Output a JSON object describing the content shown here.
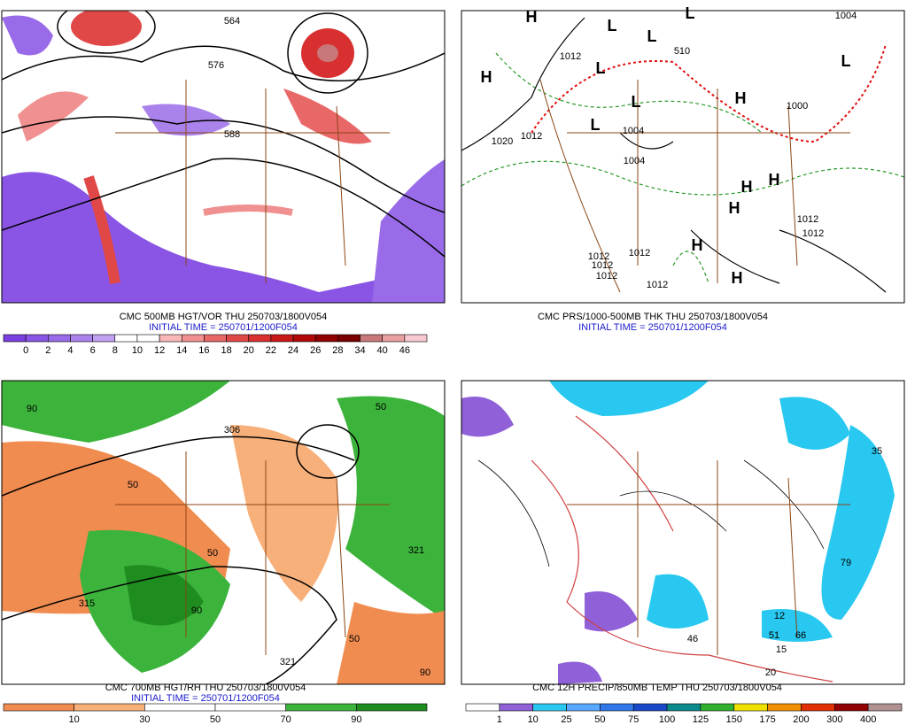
{
  "panels": [
    {
      "caption": "CMC 500MB HGT/VOR THU 250703/1800V054",
      "initial_time": "INITIAL TIME = 250701/1200F054",
      "colorbar": {
        "colors": [
          "#7a3fe0",
          "#8a55e4",
          "#9a6be8",
          "#aa82ec",
          "#c0a0f0",
          "#ffffff",
          "#ffffff",
          "#f8b8b8",
          "#f09090",
          "#e86868",
          "#e04848",
          "#d83030",
          "#c81818",
          "#b00808",
          "#900000",
          "#780000",
          "#c87878",
          "#e8a0a0",
          "#f8c8d0"
        ],
        "labels": [
          0,
          2,
          4,
          6,
          8,
          10,
          12,
          14,
          16,
          18,
          20,
          22,
          24,
          26,
          28,
          34,
          40,
          46
        ]
      },
      "map_labels": [
        "564",
        "576",
        "588"
      ]
    },
    {
      "caption": "CMC PRS/1000-500MB THK THU 250703/1800V054",
      "initial_time": "INITIAL TIME = 250701/1200F054",
      "map_labels": [
        "H",
        "H",
        "H",
        "H",
        "H",
        "H",
        "H",
        "H",
        "L",
        "L",
        "L",
        "L",
        "L",
        "L",
        "L",
        "1012",
        "1012",
        "1004",
        "1004",
        "1020",
        "1000",
        "1012",
        "1012",
        "1012",
        "1012",
        "1012",
        "1012",
        "1012",
        "1004",
        "510"
      ]
    },
    {
      "caption": "CMC 700MB HGT/RH THU 250703/1800V054",
      "initial_time": "INITIAL TIME = 250701/1200F054",
      "colorbar": {
        "colors": [
          "#f08c50",
          "#f8b07a",
          "#ffffff",
          "#ffffff",
          "#3cb43c",
          "#1e8c1e"
        ],
        "labels": [
          10,
          30,
          50,
          70,
          90
        ]
      },
      "map_labels": [
        "90",
        "50",
        "50",
        "90",
        "306",
        "315",
        "321",
        "321",
        "50",
        "90",
        "50"
      ]
    },
    {
      "caption": "CMC 12H PRECIP/850MB TEMP THU 250703/1800V054",
      "colorbar": {
        "colors": [
          "#ffffff",
          "#9060d8",
          "#28c8f0",
          "#58a8ff",
          "#3078e8",
          "#1848c8",
          "#0a8a8a",
          "#30b030",
          "#f0e000",
          "#f09000",
          "#e03000",
          "#900000",
          "#b09090"
        ],
        "labels": [
          1,
          10,
          25,
          50,
          75,
          100,
          125,
          150,
          175,
          200,
          300,
          400
        ]
      },
      "map_labels": [
        "12",
        "15",
        "20",
        "51",
        "66",
        "79",
        "35",
        "46"
      ]
    }
  ]
}
